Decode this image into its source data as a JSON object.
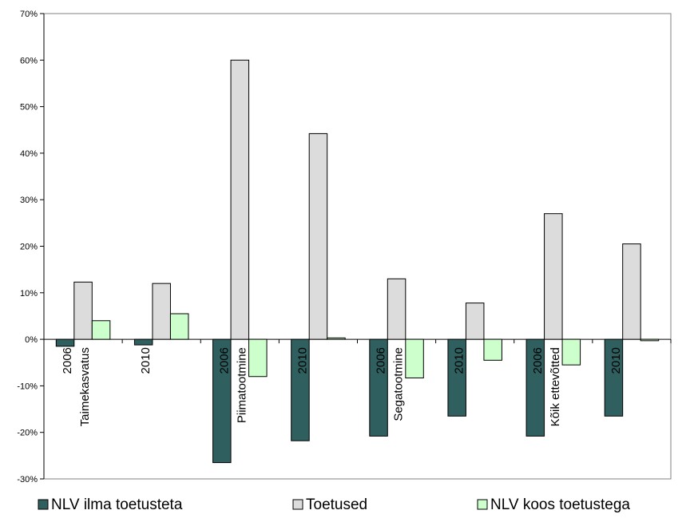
{
  "chart_data": {
    "type": "bar",
    "categories": [
      "2006",
      "2010",
      "2006",
      "2010",
      "2006",
      "2010",
      "2006",
      "2010"
    ],
    "group_labels": [
      "Taimekasvatus",
      "Piimatootmine",
      "Segatootmine",
      "Kõik ettevõtted"
    ],
    "series": [
      {
        "name": "NLV ilma toetusteta",
        "color": "#2f5f5f",
        "values": [
          -1.5,
          -1.2,
          -26.5,
          -21.8,
          -20.8,
          -16.5,
          -20.8,
          -16.5
        ]
      },
      {
        "name": "Toetused",
        "color": "#dcdcdc",
        "values": [
          12.3,
          12.0,
          60.0,
          44.2,
          13.0,
          7.8,
          27.0,
          20.5
        ]
      },
      {
        "name": "NLV koos toetustega",
        "color": "#ccffcc",
        "values": [
          4.0,
          5.5,
          -8.0,
          0.3,
          -8.3,
          -4.5,
          -5.5,
          -0.3
        ]
      }
    ],
    "y_ticks": [
      "70%",
      "60%",
      "50%",
      "40%",
      "30%",
      "20%",
      "10%",
      "0%",
      "-10%",
      "-20%",
      "-30%"
    ],
    "ylim": [
      -30,
      70
    ],
    "grid": false,
    "legend": "bottom"
  }
}
